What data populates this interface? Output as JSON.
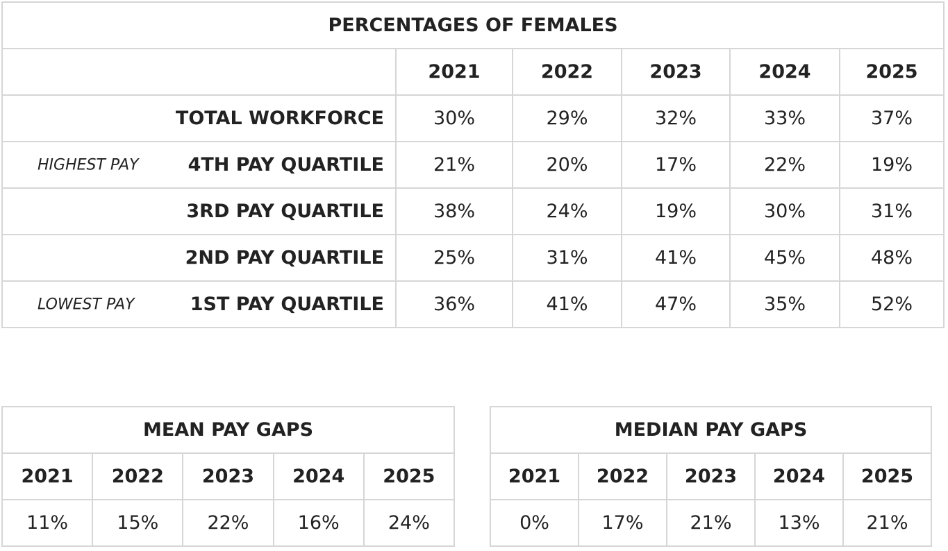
{
  "females": {
    "title": "PERCENTAGES OF FEMALES",
    "years": [
      "2021",
      "2022",
      "2023",
      "2024",
      "2025"
    ],
    "rows": [
      {
        "note": "",
        "label": "TOTAL WORKFORCE",
        "values": [
          "30%",
          "29%",
          "32%",
          "33%",
          "37%"
        ]
      },
      {
        "note": "HIGHEST PAY",
        "label": "4TH PAY QUARTILE",
        "values": [
          "21%",
          "20%",
          "17%",
          "22%",
          "19%"
        ]
      },
      {
        "note": "",
        "label": "3RD PAY QUARTILE",
        "values": [
          "38%",
          "24%",
          "19%",
          "30%",
          "31%"
        ]
      },
      {
        "note": "",
        "label": "2ND PAY QUARTILE",
        "values": [
          "25%",
          "31%",
          "41%",
          "45%",
          "48%"
        ]
      },
      {
        "note": "LOWEST PAY",
        "label": "1ST PAY QUARTILE",
        "values": [
          "36%",
          "41%",
          "47%",
          "35%",
          "52%"
        ]
      }
    ]
  },
  "mean": {
    "title": "MEAN PAY GAPS",
    "years": [
      "2021",
      "2022",
      "2023",
      "2024",
      "2025"
    ],
    "values": [
      "11%",
      "15%",
      "22%",
      "16%",
      "24%"
    ]
  },
  "median": {
    "title": "MEDIAN PAY GAPS",
    "years": [
      "2021",
      "2022",
      "2023",
      "2024",
      "2025"
    ],
    "values": [
      "0%",
      "17%",
      "21%",
      "13%",
      "21%"
    ]
  }
}
